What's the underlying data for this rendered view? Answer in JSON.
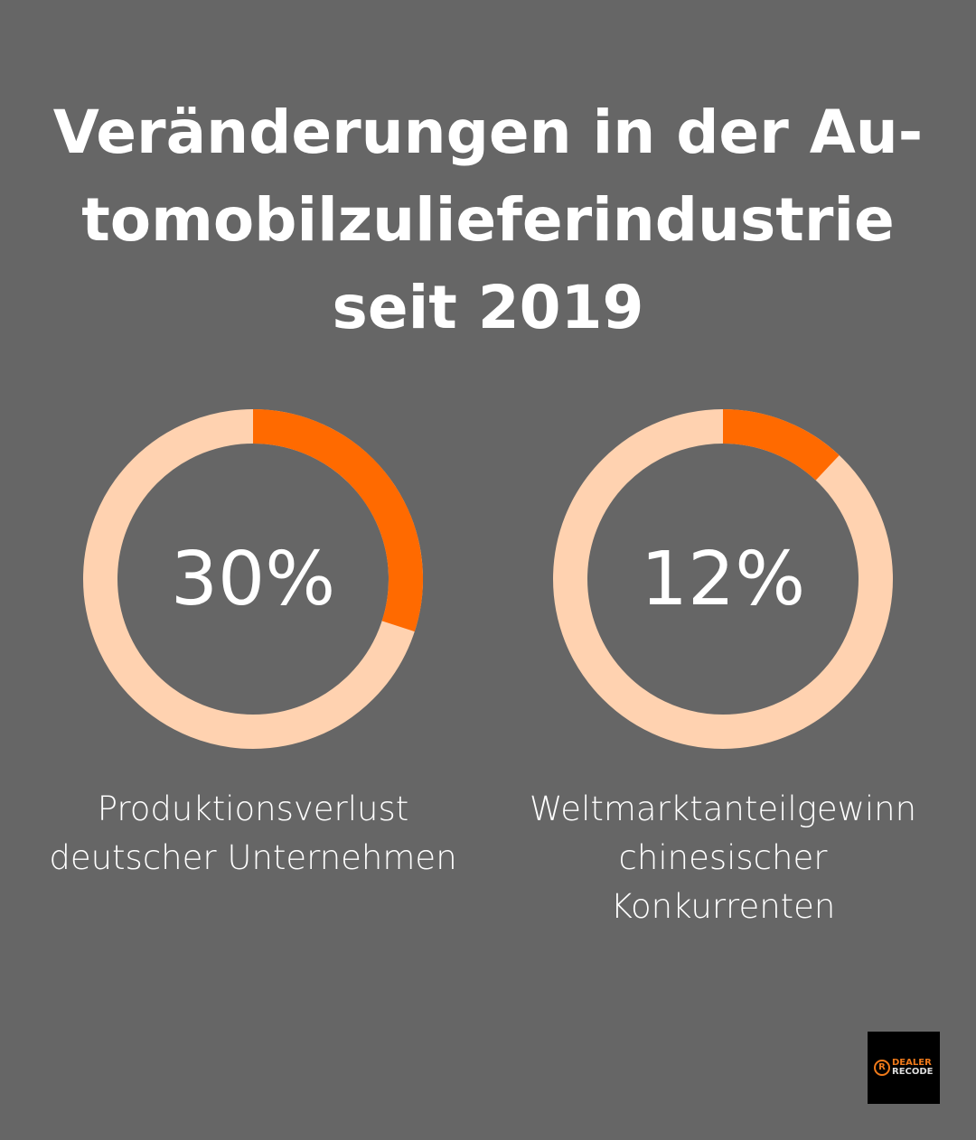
{
  "title_lines": [
    "Veränderungen in der Au-",
    "tomobilzulieferindustrie",
    "seit 2019"
  ],
  "colors": {
    "background": "#666666",
    "filled": "#ff6a00",
    "remainder": "#ffd2b0",
    "text": "#ffffff"
  },
  "chart_data": [
    {
      "type": "pie",
      "variant": "donut",
      "value": 30,
      "max": 100,
      "label": "30%",
      "caption_lines": [
        "Produktionsverlust",
        "deutscher Unternehmen"
      ]
    },
    {
      "type": "pie",
      "variant": "donut",
      "value": 12,
      "max": 100,
      "label": "12%",
      "caption_lines": [
        "Weltmarktanteilgewinn",
        "chinesischer",
        "Konkurrenten"
      ]
    }
  ],
  "logo": {
    "line1": "DEALER",
    "line2": "RECODE",
    "icon": "R"
  }
}
